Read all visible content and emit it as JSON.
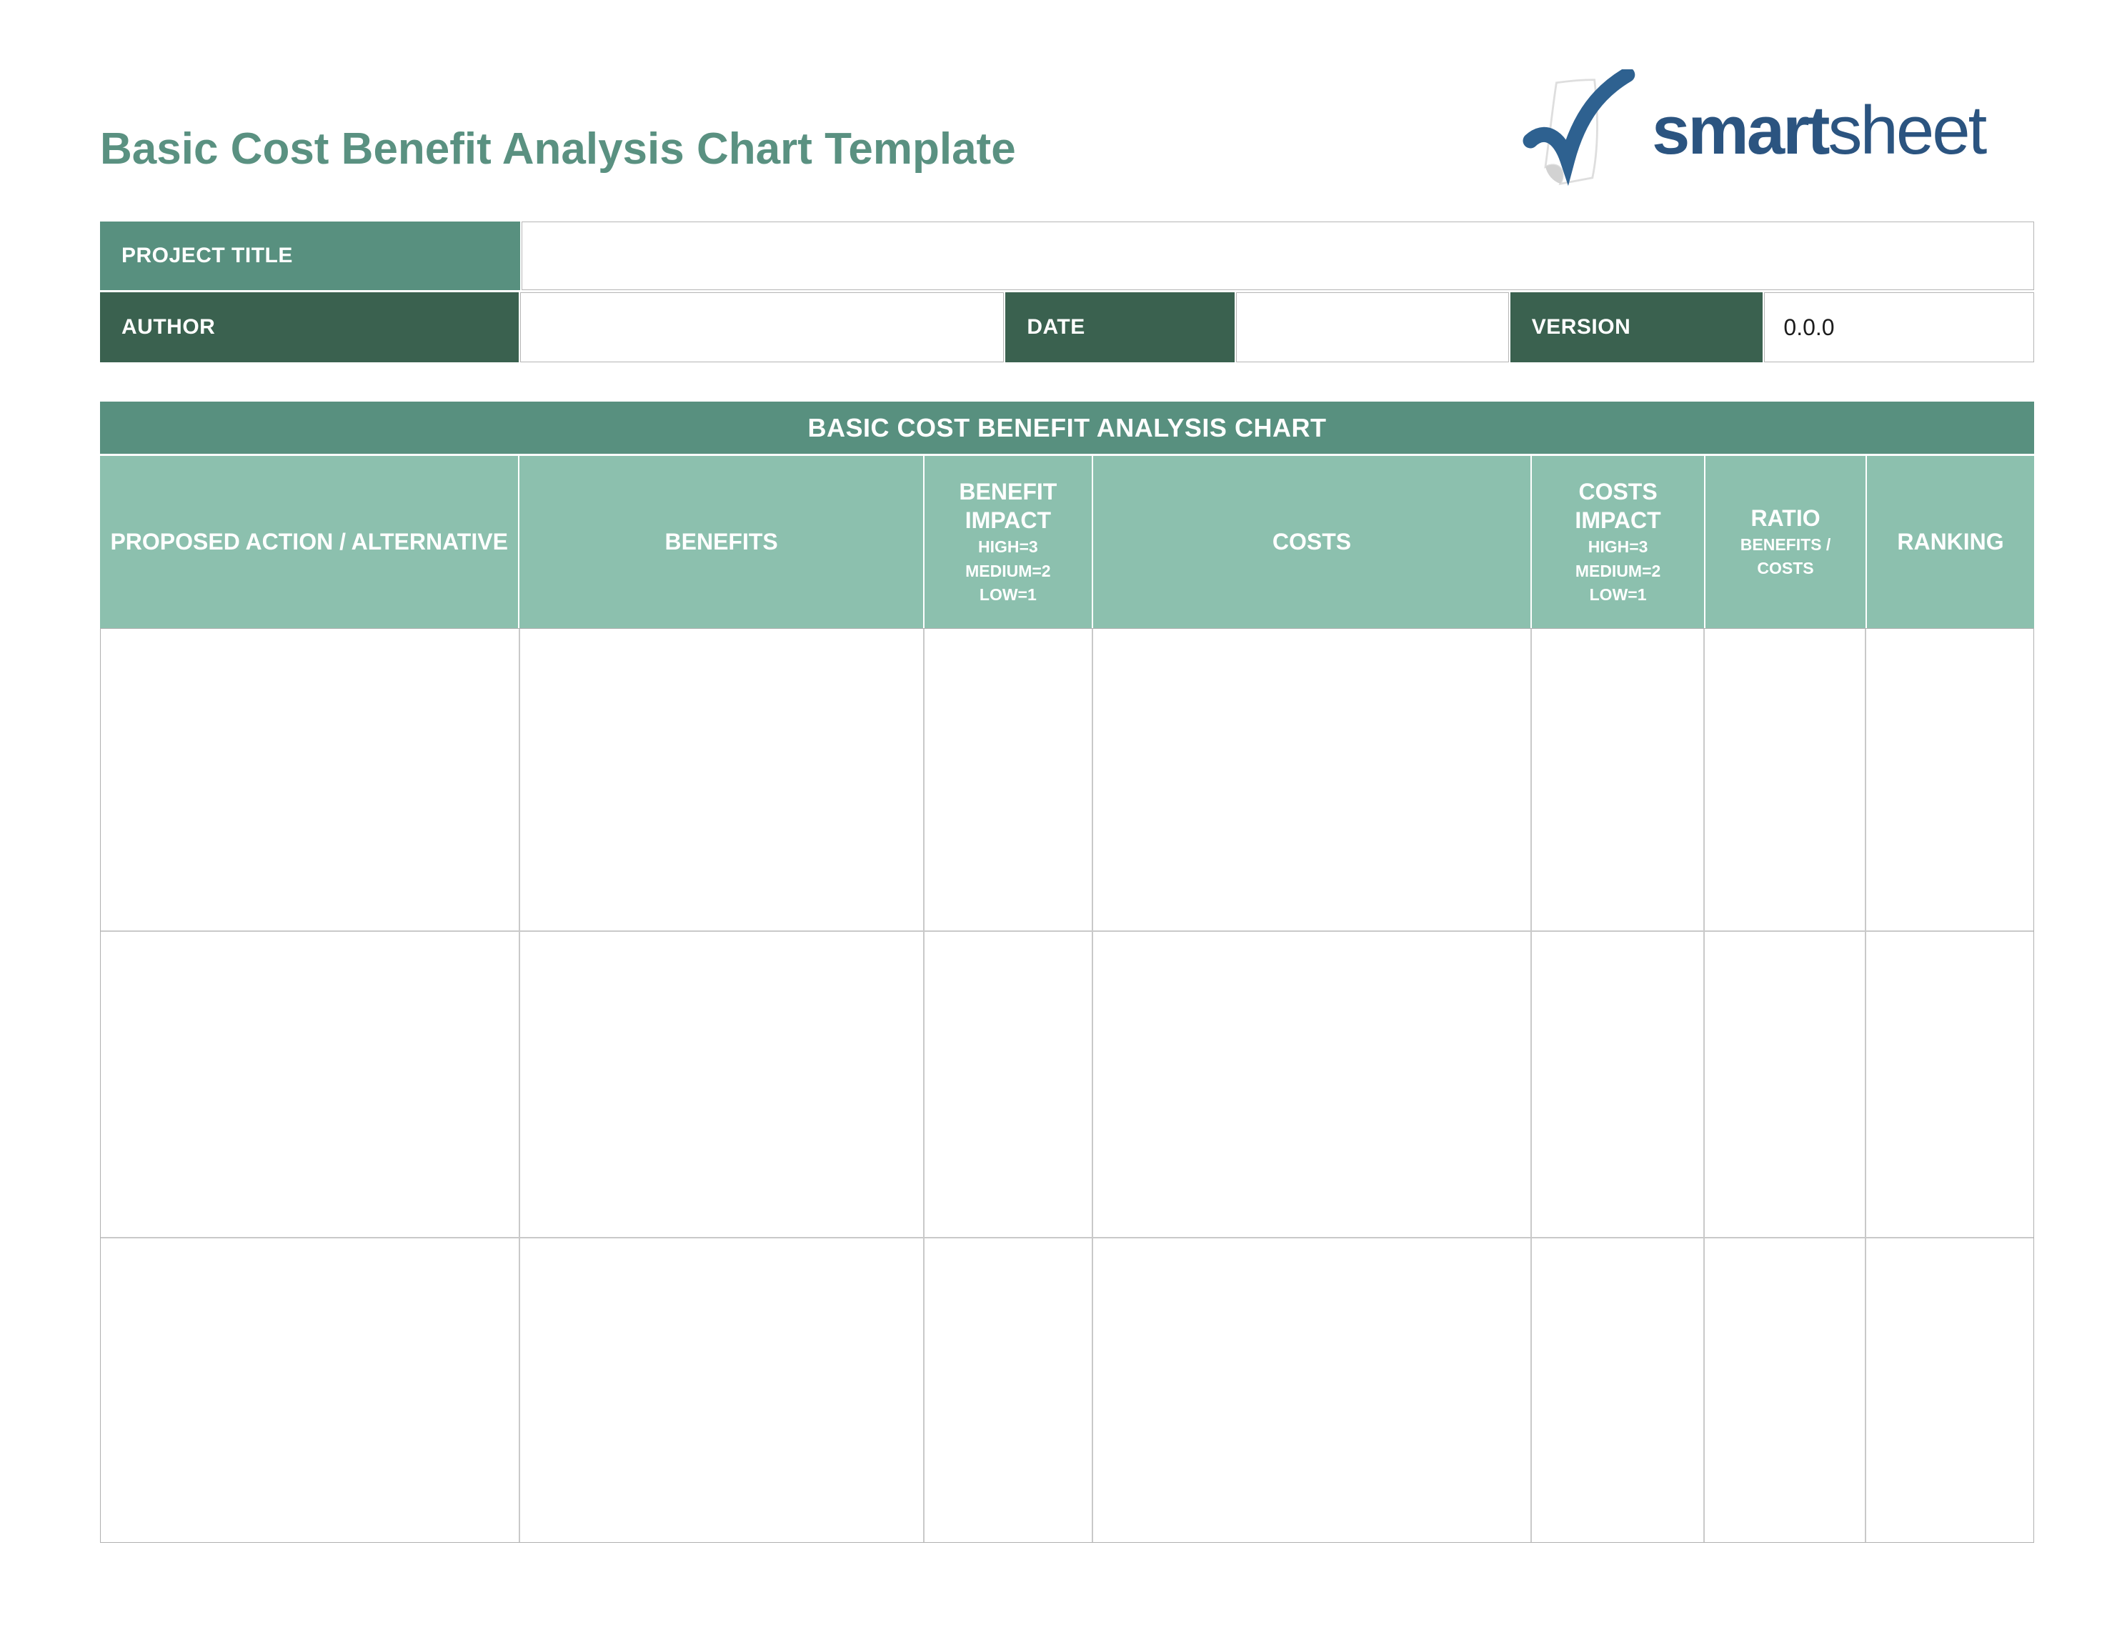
{
  "page": {
    "title": "Basic Cost Benefit Analysis Chart Template"
  },
  "logo": {
    "text_bold": "smart",
    "text_light": "sheet",
    "icon": "checkmark-page-icon"
  },
  "meta": {
    "project_title": {
      "label": "PROJECT TITLE",
      "value": ""
    },
    "author": {
      "label": "AUTHOR",
      "value": ""
    },
    "date": {
      "label": "DATE",
      "value": ""
    },
    "version": {
      "label": "VERSION",
      "value": "0.0.0"
    }
  },
  "table": {
    "title": "BASIC COST BENEFIT ANALYSIS CHART",
    "columns": [
      {
        "title": "PROPOSED ACTION / ALTERNATIVE",
        "subtitle_lines": []
      },
      {
        "title": "BENEFITS",
        "subtitle_lines": []
      },
      {
        "title": "BENEFIT IMPACT",
        "subtitle_lines": [
          "HIGH=3",
          "MEDIUM=2",
          "LOW=1"
        ]
      },
      {
        "title": "COSTS",
        "subtitle_lines": []
      },
      {
        "title": "COSTS IMPACT",
        "subtitle_lines": [
          "HIGH=3",
          "MEDIUM=2",
          "LOW=1"
        ]
      },
      {
        "title": "RATIO",
        "subtitle_lines": [
          "BENEFITS /",
          "COSTS"
        ]
      },
      {
        "title": "RANKING",
        "subtitle_lines": []
      }
    ],
    "rows": [
      {
        "cells": [
          "",
          "",
          "",
          "",
          "",
          "",
          ""
        ]
      },
      {
        "cells": [
          "",
          "",
          "",
          "",
          "",
          "",
          ""
        ]
      },
      {
        "cells": [
          "",
          "",
          "",
          "",
          "",
          "",
          ""
        ]
      }
    ]
  },
  "colors": {
    "title_green": "#5A9181",
    "medium_green": "#58907F",
    "dark_green": "#3A614F",
    "light_green": "#8CC0AE",
    "logo_blue": "#2B5480"
  }
}
